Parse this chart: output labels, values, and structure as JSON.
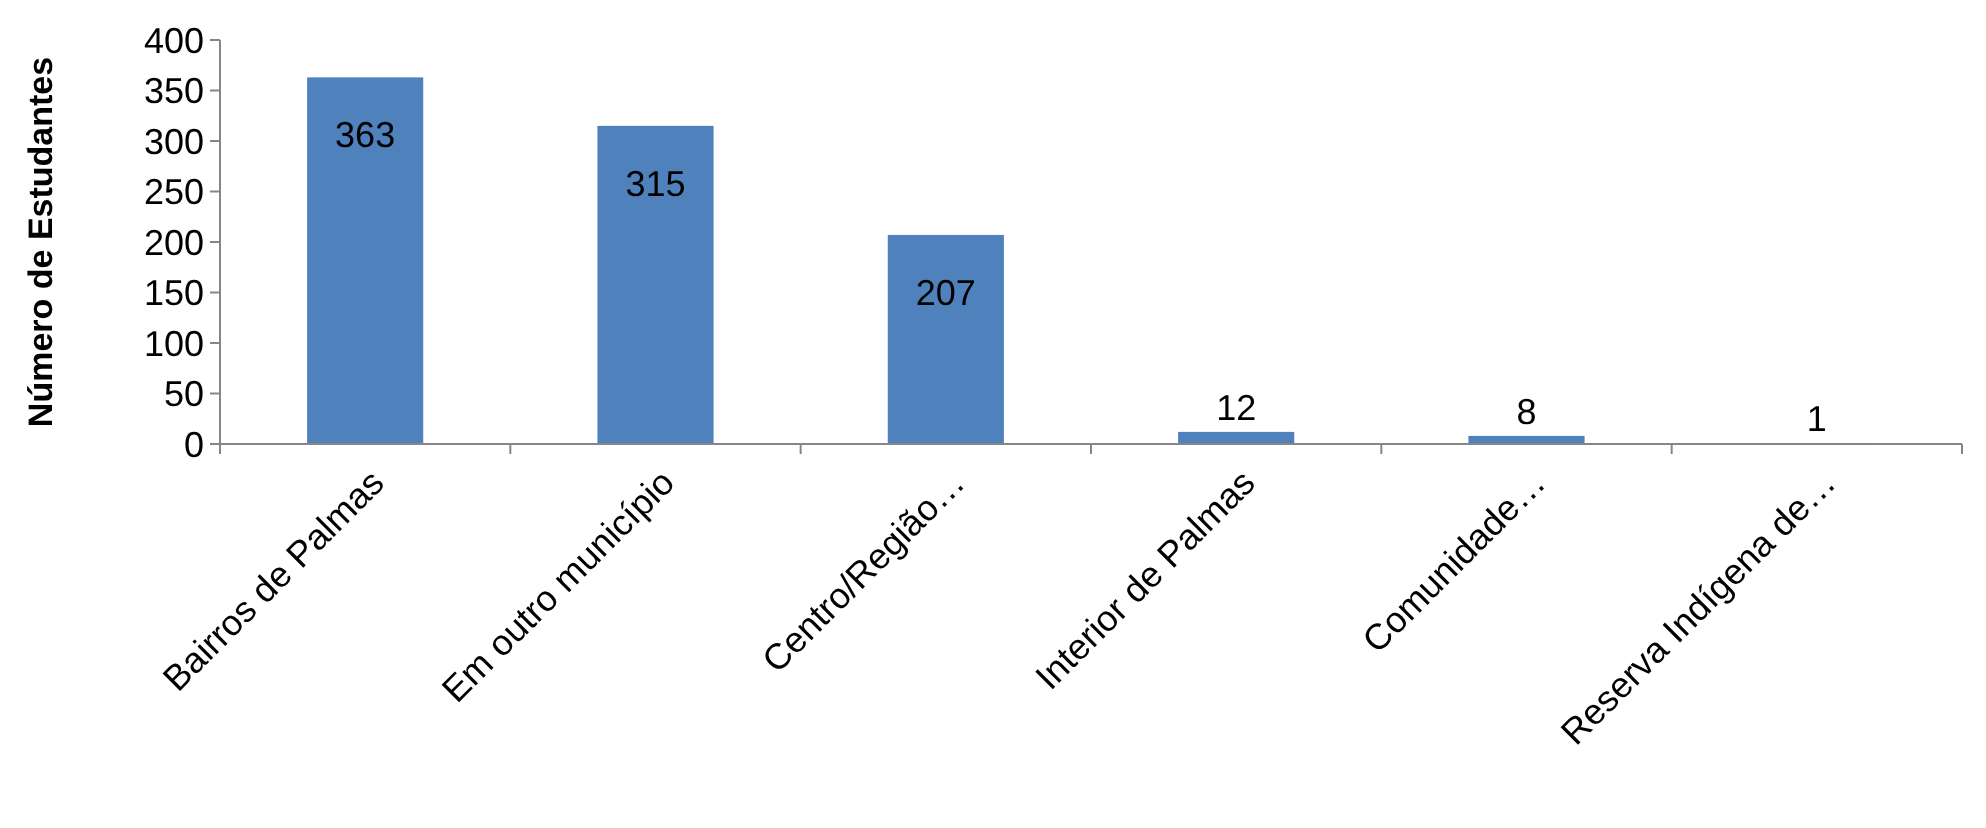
{
  "chart_data": {
    "type": "bar",
    "ylabel": "Número de Estudantes",
    "categories": [
      "Bairros de Palmas",
      "Em outro município",
      "Centro/Região…",
      "Interior de Palmas",
      "Comunidade…",
      "Reserva Indígena de…"
    ],
    "values": [
      363,
      315,
      207,
      12,
      8,
      1
    ],
    "color": "#4f81bd",
    "ylim": [
      0,
      400
    ],
    "yticks": [
      0,
      50,
      100,
      150,
      200,
      250,
      300,
      350,
      400
    ],
    "grid": false,
    "data_labels": true
  }
}
